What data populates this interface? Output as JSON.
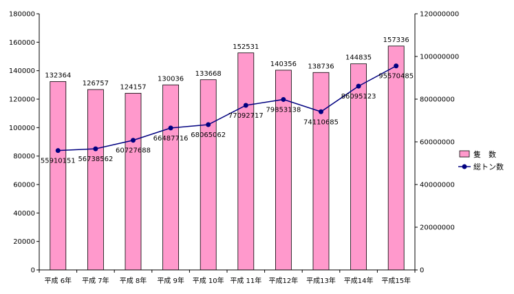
{
  "chart_data": {
    "type": "bar+line",
    "categories": [
      "平成 6年",
      "平成 7年",
      "平成 8年",
      "平成 9年",
      "平成 10年",
      "平成 11年",
      "平成12年",
      "平成13年",
      "平成14年",
      "平成15年"
    ],
    "series": [
      {
        "name": "隻　数",
        "type": "bar",
        "axis": "left",
        "color": "#ff99cc",
        "values": [
          132364,
          126757,
          124157,
          130036,
          133668,
          152531,
          140356,
          138736,
          144835,
          157336
        ],
        "labels": [
          "132364",
          "126757",
          "124157",
          "130036",
          "133668",
          "152531",
          "140356",
          "138736",
          "144835",
          "157336"
        ]
      },
      {
        "name": "総トン数",
        "type": "line",
        "axis": "right",
        "color": "#000080",
        "values": [
          55910151,
          56738562,
          60727688,
          66487716,
          68065062,
          77092717,
          79853138,
          74110685,
          86095123,
          95570485
        ],
        "labels": [
          "55910151",
          "56738562",
          "60727688",
          "66487716",
          "68065062",
          "77092717",
          "79853138",
          "74110685",
          "86095123",
          "95570485"
        ]
      }
    ],
    "left_axis": {
      "ylim": [
        0,
        180000
      ],
      "ticks": [
        "0",
        "20000",
        "40000",
        "60000",
        "80000",
        "100000",
        "120000",
        "140000",
        "160000",
        "180000"
      ]
    },
    "right_axis": {
      "ylim": [
        0,
        120000000
      ],
      "ticks": [
        "0",
        "20000000",
        "40000000",
        "60000000",
        "80000000",
        "100000000",
        "120000000"
      ]
    },
    "grid": false,
    "legend": "right"
  }
}
